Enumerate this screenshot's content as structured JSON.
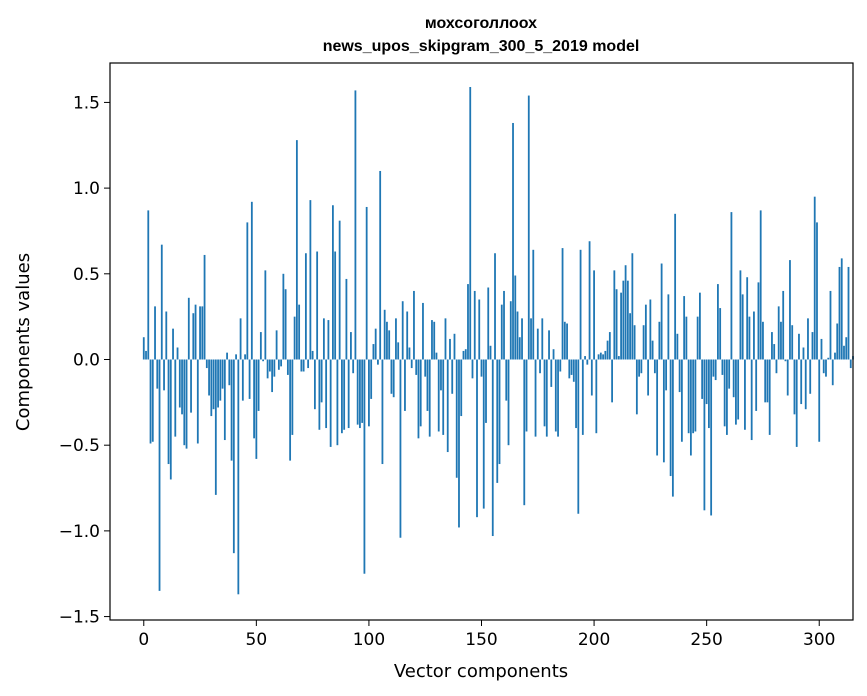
{
  "chart_data": {
    "type": "bar",
    "title_line1": "мохсоголлоох",
    "title_line2": "news_upos_skipgram_300_5_2019 model",
    "xlabel": "Vector components",
    "ylabel": "Components values",
    "xlim": [
      -15,
      315
    ],
    "ylim": [
      -1.52,
      1.73
    ],
    "xticks": [
      0,
      50,
      100,
      150,
      200,
      250,
      300
    ],
    "xtick_labels": [
      "0",
      "50",
      "100",
      "150",
      "200",
      "250",
      "300"
    ],
    "yticks": [
      -1.5,
      -1.0,
      -0.5,
      0.0,
      0.5,
      1.0,
      1.5
    ],
    "ytick_labels": [
      "−1.5",
      "−1.0",
      "−0.5",
      "0.0",
      "0.5",
      "1.0",
      "1.5"
    ],
    "bar_color": "#1f77b4",
    "grid": false,
    "values": [
      0.13,
      0.05,
      0.87,
      -0.49,
      -0.48,
      0.31,
      -0.17,
      -1.35,
      0.67,
      -0.18,
      0.28,
      -0.61,
      -0.7,
      0.18,
      -0.45,
      0.07,
      -0.28,
      -0.32,
      -0.5,
      -0.52,
      0.36,
      -0.31,
      0.27,
      0.32,
      -0.49,
      0.31,
      0.31,
      0.61,
      -0.05,
      -0.21,
      -0.33,
      -0.29,
      -0.79,
      -0.28,
      -0.24,
      -0.17,
      -0.47,
      0.04,
      -0.15,
      -0.59,
      -1.13,
      0.03,
      -1.37,
      0.24,
      -0.24,
      0.03,
      0.8,
      -0.23,
      0.92,
      -0.46,
      -0.58,
      -0.3,
      0.16,
      -0.01,
      0.52,
      -0.11,
      -0.07,
      -0.19,
      -0.1,
      0.17,
      -0.06,
      -0.04,
      0.5,
      0.41,
      -0.09,
      -0.59,
      -0.44,
      0.25,
      1.28,
      0.32,
      -0.07,
      -0.07,
      0.62,
      -0.05,
      0.93,
      0.05,
      -0.29,
      0.63,
      -0.41,
      -0.25,
      0.24,
      -0.4,
      0.23,
      -0.51,
      0.9,
      0.63,
      -0.5,
      0.81,
      -0.43,
      -0.41,
      0.47,
      -0.4,
      0.16,
      -0.08,
      1.57,
      -0.38,
      -0.4,
      -0.37,
      -1.25,
      0.89,
      -0.39,
      -0.23,
      0.09,
      0.18,
      -0.03,
      1.1,
      -0.61,
      0.29,
      0.22,
      0.17,
      -0.2,
      -0.22,
      0.24,
      0.1,
      -1.04,
      0.34,
      -0.3,
      0.28,
      0.07,
      -0.05,
      0.4,
      -0.09,
      -0.46,
      -0.39,
      0.33,
      -0.1,
      -0.3,
      -0.45,
      0.23,
      0.22,
      0.04,
      -0.42,
      -0.18,
      -0.44,
      0.24,
      -0.54,
      0.12,
      -0.2,
      0.15,
      -0.69,
      -0.98,
      -0.33,
      0.05,
      0.06,
      0.44,
      1.59,
      -0.11,
      0.4,
      -0.92,
      0.35,
      -0.1,
      -0.87,
      -0.37,
      0.42,
      0.08,
      -1.03,
      0.62,
      -0.72,
      -0.61,
      0.32,
      0.4,
      -0.24,
      -0.5,
      0.34,
      1.38,
      0.49,
      0.28,
      0.13,
      0.24,
      -0.85,
      -0.42,
      1.54,
      0.24,
      0.64,
      -0.45,
      0.18,
      -0.08,
      0.24,
      -0.39,
      -0.45,
      0.17,
      -0.16,
      0.06,
      -0.42,
      -0.45,
      -0.07,
      0.65,
      0.22,
      0.21,
      -0.11,
      -0.09,
      -0.13,
      -0.4,
      -0.9,
      0.64,
      -0.44,
      0.02,
      -0.03,
      0.69,
      -0.21,
      0.52,
      -0.43,
      0.03,
      0.04,
      0.03,
      0.05,
      0.11,
      0.16,
      -0.25,
      0.52,
      0.41,
      0.02,
      0.39,
      0.46,
      0.55,
      0.46,
      0.27,
      0.62,
      0.2,
      -0.32,
      -0.1,
      -0.08,
      0.2,
      0.32,
      -0.21,
      0.35,
      0.11,
      -0.08,
      -0.56,
      0.22,
      0.56,
      -0.6,
      -0.18,
      0.38,
      -0.68,
      -0.8,
      0.85,
      0.15,
      -0.19,
      -0.48,
      0.37,
      0.25,
      -0.43,
      -0.56,
      -0.43,
      -0.42,
      0.25,
      0.39,
      -0.23,
      -0.88,
      -0.26,
      -0.4,
      -0.91,
      -0.1,
      -0.12,
      0.44,
      0.3,
      -0.09,
      -0.39,
      -0.44,
      -0.17,
      0.86,
      -0.22,
      -0.38,
      -0.35,
      0.52,
      0.38,
      -0.41,
      0.48,
      0.25,
      -0.47,
      0.28,
      -0.3,
      0.45,
      0.87,
      0.22,
      -0.25,
      -0.25,
      -0.44,
      0.16,
      0.09,
      -0.08,
      0.31,
      0.22,
      0.4,
      -0.01,
      -0.21,
      0.58,
      0.2,
      -0.32,
      -0.51,
      0.15,
      -0.26,
      0.07,
      -0.29,
      0.24,
      -0.2,
      0.16,
      0.95,
      0.8,
      -0.48,
      0.12,
      -0.08,
      -0.1,
      0.01,
      0.4,
      -0.15,
      0.04,
      0.21,
      0.54,
      0.59,
      0.08,
      0.13,
      0.54,
      -0.05,
      0.02
    ]
  }
}
